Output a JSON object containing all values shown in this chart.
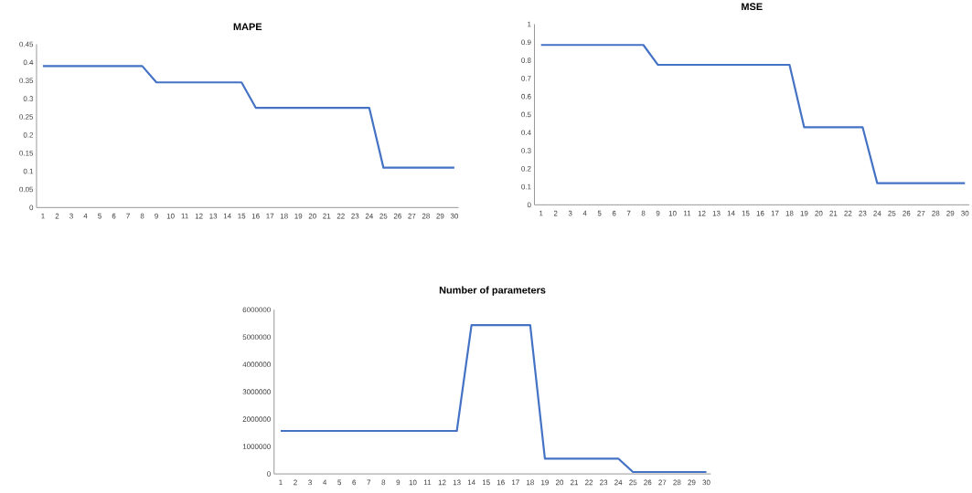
{
  "chart_data": [
    {
      "type": "line",
      "title": "MAPE",
      "categories": [
        "1",
        "2",
        "3",
        "4",
        "5",
        "6",
        "7",
        "8",
        "9",
        "10",
        "11",
        "12",
        "13",
        "14",
        "15",
        "16",
        "17",
        "18",
        "19",
        "20",
        "21",
        "22",
        "23",
        "24",
        "25",
        "26",
        "27",
        "28",
        "29",
        "30"
      ],
      "color": "#4472c4",
      "values": [
        0.39,
        0.39,
        0.39,
        0.39,
        0.39,
        0.39,
        0.39,
        0.39,
        0.345,
        0.345,
        0.345,
        0.345,
        0.345,
        0.345,
        0.345,
        0.275,
        0.275,
        0.275,
        0.275,
        0.275,
        0.275,
        0.275,
        0.275,
        0.275,
        0.11,
        0.11,
        0.11,
        0.11,
        0.11,
        0.11
      ],
      "ylim": [
        0,
        0.45
      ],
      "yticks": [
        0,
        0.05,
        0.1,
        0.15,
        0.2,
        0.25,
        0.3,
        0.35,
        0.4,
        0.45
      ]
    },
    {
      "type": "line",
      "title": "MSE",
      "categories": [
        "1",
        "2",
        "3",
        "4",
        "5",
        "6",
        "7",
        "8",
        "9",
        "10",
        "11",
        "12",
        "13",
        "14",
        "15",
        "16",
        "17",
        "18",
        "19",
        "20",
        "21",
        "22",
        "23",
        "24",
        "25",
        "26",
        "27",
        "28",
        "29",
        "30"
      ],
      "color": "#4472c4",
      "values": [
        0.885,
        0.885,
        0.885,
        0.885,
        0.885,
        0.885,
        0.885,
        0.885,
        0.775,
        0.775,
        0.775,
        0.775,
        0.775,
        0.775,
        0.775,
        0.775,
        0.775,
        0.775,
        0.43,
        0.43,
        0.43,
        0.43,
        0.43,
        0.12,
        0.12,
        0.12,
        0.12,
        0.12,
        0.12,
        0.12
      ],
      "ylim": [
        0,
        1
      ],
      "yticks": [
        0,
        0.1,
        0.2,
        0.3,
        0.4,
        0.5,
        0.6,
        0.7,
        0.8,
        0.9,
        1
      ]
    },
    {
      "type": "line",
      "title": "Number of parameters",
      "categories": [
        "1",
        "2",
        "3",
        "4",
        "5",
        "6",
        "7",
        "8",
        "9",
        "10",
        "11",
        "12",
        "13",
        "14",
        "15",
        "16",
        "17",
        "18",
        "19",
        "20",
        "21",
        "22",
        "23",
        "24",
        "25",
        "26",
        "27",
        "28",
        "29",
        "30"
      ],
      "color": "#4472c4",
      "values": [
        1570000,
        1570000,
        1570000,
        1570000,
        1570000,
        1570000,
        1570000,
        1570000,
        1570000,
        1570000,
        1570000,
        1570000,
        1570000,
        5440000,
        5440000,
        5440000,
        5440000,
        5440000,
        560000,
        560000,
        560000,
        560000,
        560000,
        560000,
        70000,
        70000,
        70000,
        70000,
        70000,
        70000
      ],
      "ylim": [
        0,
        6000000
      ],
      "yticks": [
        0,
        1000000,
        2000000,
        3000000,
        4000000,
        5000000,
        6000000
      ]
    }
  ]
}
